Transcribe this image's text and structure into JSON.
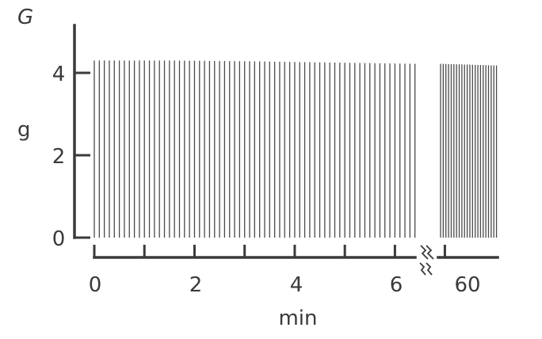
{
  "chart_data": {
    "type": "bar",
    "panel_label": "G",
    "ylabel": "g",
    "xlabel": "min",
    "ylim": [
      0,
      5
    ],
    "y_ticks": [
      "0",
      "2",
      "4"
    ],
    "x_ticks_first_segment": [
      "0",
      "2",
      "4",
      "6"
    ],
    "x_ticks_second_segment": [
      "60"
    ],
    "axis_break_between": [
      6.5,
      59.5
    ],
    "series": [
      {
        "segment": "0-6.4 min",
        "x_range": [
          0,
          6.4
        ],
        "twitch_count": 65,
        "values": [
          4.3,
          4.3,
          4.28,
          4.25,
          4.22
        ]
      },
      {
        "segment": "59.5-66 min",
        "x_range": [
          59.5,
          66
        ],
        "twitch_count": 22,
        "values": [
          4.22,
          4.2,
          4.18
        ]
      }
    ],
    "colors": {
      "ink": "#3a3a3a"
    }
  }
}
